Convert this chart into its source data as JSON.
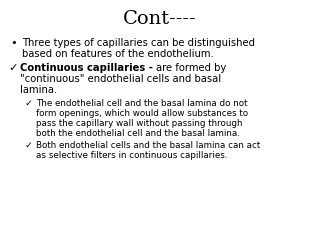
{
  "title": "Cont----",
  "title_fontsize": 14,
  "background_color": "#ffffff",
  "text_color": "#000000",
  "font_size_main": 7.2,
  "font_size_sub": 6.3,
  "bullet1_line1": "Three types of capillaries can be distinguished",
  "bullet1_line2": "based on features of the endothelium.",
  "b2_bold": "Continuous capillaries - ",
  "b2_rest_line1": "are formed by",
  "b2_line2": "\"continuous\" endothelial cells and basal",
  "b2_line3": "lamina.",
  "sub1_line1": "The endothelial cell and the basal lamina do not",
  "sub1_line2": "form openings, which would allow substances to",
  "sub1_line3": "pass the capillary wall without passing through",
  "sub1_line4": "both the endothelial cell and the basal lamina.",
  "sub2_line1": "Both endothelial cells and the basal lamina can act",
  "sub2_line2": "as selective filters in continuous capillaries."
}
